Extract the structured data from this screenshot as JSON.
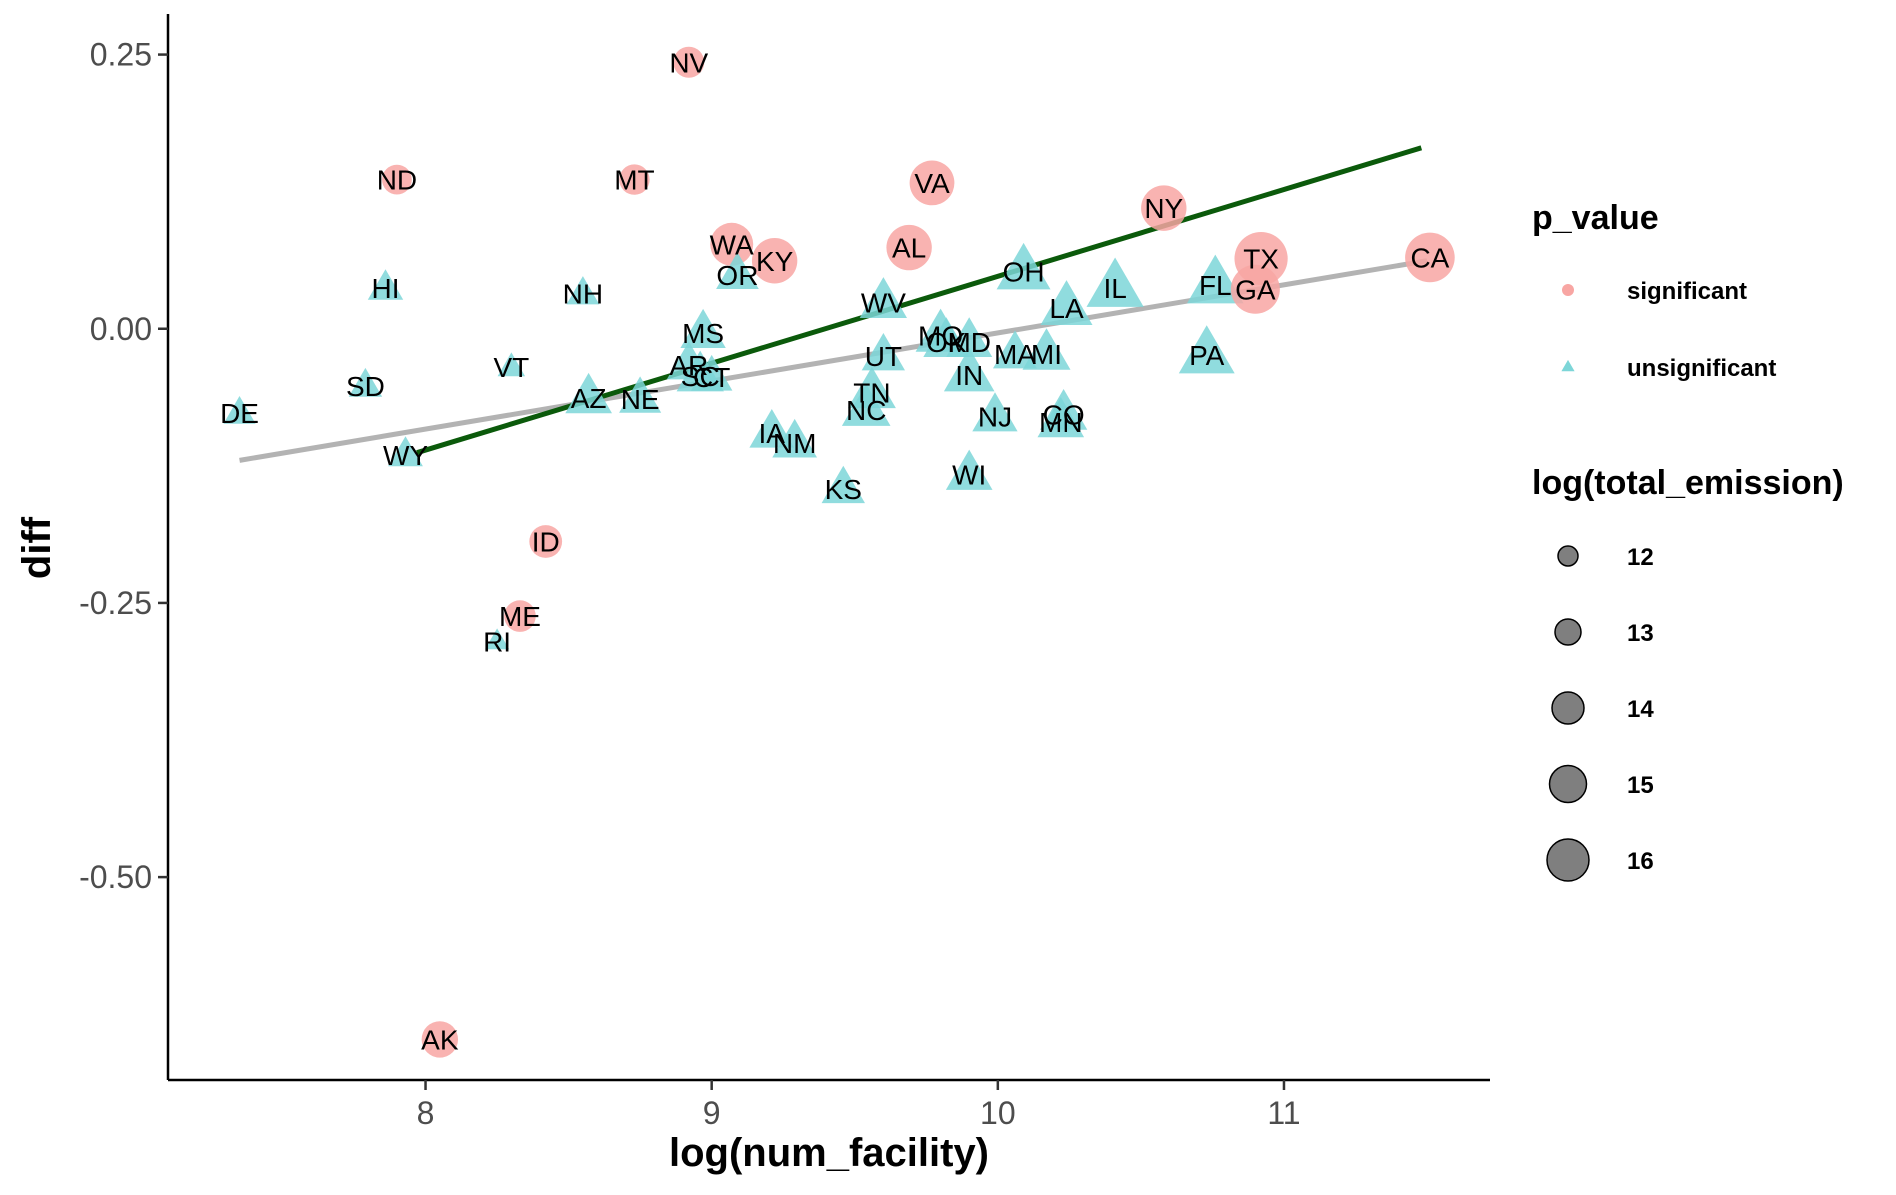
{
  "chart_data": {
    "type": "scatter",
    "title": "",
    "xlabel": "log(num_facility)",
    "ylabel": "diff",
    "xlim": [
      7.1,
      11.72
    ],
    "ylim": [
      -0.685,
      0.287
    ],
    "xticks": [
      8,
      9,
      10,
      11
    ],
    "xtick_labels": [
      "8",
      "9",
      "10",
      "11"
    ],
    "yticks": [
      0.25,
      0.0,
      -0.25,
      -0.5
    ],
    "ytick_labels": [
      "0.25",
      "0.00",
      "-0.25",
      "-0.50"
    ],
    "grid": false,
    "legend_position": "right",
    "colors": {
      "significant": "#F8A6A3",
      "unsignificant": "#7DD6D8",
      "fit_all": "#B3B3B3",
      "fit_unsignificant": "#0B5A0B",
      "axis": "#000000"
    },
    "legend": {
      "color_title": "p_value",
      "color_items": [
        {
          "label": "significant",
          "shape": "circle"
        },
        {
          "label": "unsignificant",
          "shape": "triangle"
        }
      ],
      "size_title": "log(total_emission)",
      "size_items": [
        {
          "label": "12",
          "value": 12
        },
        {
          "label": "13",
          "value": 13
        },
        {
          "label": "14",
          "value": 14
        },
        {
          "label": "15",
          "value": 15
        },
        {
          "label": "16",
          "value": 16
        }
      ]
    },
    "trend_lines": [
      {
        "name": "all",
        "color": "#B3B3B3",
        "x": [
          7.35,
          11.5
        ],
        "y": [
          -0.12,
          0.062
        ]
      },
      {
        "name": "unsignificant",
        "color": "#0B5A0B",
        "x": [
          7.97,
          11.48
        ],
        "y": [
          -0.113,
          0.165
        ]
      }
    ],
    "points": [
      {
        "label": "NV",
        "x": 8.92,
        "y": 0.243,
        "group": "significant",
        "size": 12.5
      },
      {
        "label": "ND",
        "x": 7.9,
        "y": 0.136,
        "group": "significant",
        "size": 12.3
      },
      {
        "label": "MT",
        "x": 8.73,
        "y": 0.136,
        "group": "significant",
        "size": 12.4
      },
      {
        "label": "VA",
        "x": 9.77,
        "y": 0.133,
        "group": "significant",
        "size": 14.8
      },
      {
        "label": "NY",
        "x": 10.58,
        "y": 0.11,
        "group": "significant",
        "size": 14.9
      },
      {
        "label": "WA",
        "x": 9.07,
        "y": 0.077,
        "group": "significant",
        "size": 14.5
      },
      {
        "label": "AL",
        "x": 9.69,
        "y": 0.074,
        "group": "significant",
        "size": 14.9
      },
      {
        "label": "KY",
        "x": 9.22,
        "y": 0.062,
        "group": "significant",
        "size": 14.9
      },
      {
        "label": "TX",
        "x": 10.92,
        "y": 0.064,
        "group": "significant",
        "size": 16.2
      },
      {
        "label": "CA",
        "x": 11.51,
        "y": 0.065,
        "group": "significant",
        "size": 15.6
      },
      {
        "label": "GA",
        "x": 10.9,
        "y": 0.036,
        "group": "significant",
        "size": 15.5
      },
      {
        "label": "ID",
        "x": 8.42,
        "y": -0.194,
        "group": "significant",
        "size": 12.8
      },
      {
        "label": "ME",
        "x": 8.33,
        "y": -0.262,
        "group": "significant",
        "size": 12.6
      },
      {
        "label": "AK",
        "x": 8.05,
        "y": -0.648,
        "group": "significant",
        "size": 13.4
      },
      {
        "label": "HI",
        "x": 7.86,
        "y": 0.037,
        "group": "unsignificant",
        "size": 12.7
      },
      {
        "label": "NH",
        "x": 8.55,
        "y": 0.032,
        "group": "unsignificant",
        "size": 12.3
      },
      {
        "label": "OR",
        "x": 9.09,
        "y": 0.049,
        "group": "unsignificant",
        "size": 13.8
      },
      {
        "label": "OH",
        "x": 10.09,
        "y": 0.052,
        "group": "unsignificant",
        "size": 15.5
      },
      {
        "label": "IL",
        "x": 10.41,
        "y": 0.037,
        "group": "unsignificant",
        "size": 16.0
      },
      {
        "label": "FL",
        "x": 10.76,
        "y": 0.04,
        "group": "unsignificant",
        "size": 15.9
      },
      {
        "label": "WV",
        "x": 9.6,
        "y": 0.024,
        "group": "unsignificant",
        "size": 14.5
      },
      {
        "label": "LA",
        "x": 10.24,
        "y": 0.019,
        "group": "unsignificant",
        "size": 15.2
      },
      {
        "label": "MO",
        "x": 9.8,
        "y": -0.006,
        "group": "unsignificant",
        "size": 14.9
      },
      {
        "label": "MS",
        "x": 8.97,
        "y": -0.004,
        "group": "unsignificant",
        "size": 14.2
      },
      {
        "label": "OK",
        "x": 9.82,
        "y": -0.012,
        "group": "unsignificant",
        "size": 14.3
      },
      {
        "label": "MD",
        "x": 9.9,
        "y": -0.012,
        "group": "unsignificant",
        "size": 14.3
      },
      {
        "label": "UT",
        "x": 9.6,
        "y": -0.025,
        "group": "unsignificant",
        "size": 13.9
      },
      {
        "label": "MA",
        "x": 10.06,
        "y": -0.023,
        "group": "unsignificant",
        "size": 14.0
      },
      {
        "label": "MI",
        "x": 10.17,
        "y": -0.023,
        "group": "unsignificant",
        "size": 14.6
      },
      {
        "label": "PA",
        "x": 10.73,
        "y": -0.024,
        "group": "unsignificant",
        "size": 15.8
      },
      {
        "label": "VT",
        "x": 8.3,
        "y": -0.035,
        "group": "unsignificant",
        "size": 11.5
      },
      {
        "label": "AR",
        "x": 8.92,
        "y": -0.033,
        "group": "unsignificant",
        "size": 14.0
      },
      {
        "label": "SC",
        "x": 8.96,
        "y": -0.043,
        "group": "unsignificant",
        "size": 14.5
      },
      {
        "label": "CT",
        "x": 9.0,
        "y": -0.044,
        "group": "unsignificant",
        "size": 13.6
      },
      {
        "label": "IN",
        "x": 9.9,
        "y": -0.042,
        "group": "unsignificant",
        "size": 15.0
      },
      {
        "label": "SD",
        "x": 7.79,
        "y": -0.052,
        "group": "unsignificant",
        "size": 12.4
      },
      {
        "label": "AZ",
        "x": 8.57,
        "y": -0.063,
        "group": "unsignificant",
        "size": 14.4
      },
      {
        "label": "NE",
        "x": 8.75,
        "y": -0.064,
        "group": "unsignificant",
        "size": 13.7
      },
      {
        "label": "TN",
        "x": 9.56,
        "y": -0.058,
        "group": "unsignificant",
        "size": 14.6
      },
      {
        "label": "NC",
        "x": 9.54,
        "y": -0.074,
        "group": "unsignificant",
        "size": 14.7
      },
      {
        "label": "DE",
        "x": 7.35,
        "y": -0.077,
        "group": "unsignificant",
        "size": 12.2
      },
      {
        "label": "NJ",
        "x": 9.99,
        "y": -0.08,
        "group": "unsignificant",
        "size": 14.2
      },
      {
        "label": "CO",
        "x": 10.23,
        "y": -0.078,
        "group": "unsignificant",
        "size": 14.5
      },
      {
        "label": "MN",
        "x": 10.22,
        "y": -0.085,
        "group": "unsignificant",
        "size": 14.4
      },
      {
        "label": "IA",
        "x": 9.21,
        "y": -0.095,
        "group": "unsignificant",
        "size": 14.1
      },
      {
        "label": "NM",
        "x": 9.29,
        "y": -0.104,
        "group": "unsignificant",
        "size": 14.1
      },
      {
        "label": "WY",
        "x": 7.93,
        "y": -0.115,
        "group": "unsignificant",
        "size": 12.6
      },
      {
        "label": "KS",
        "x": 9.46,
        "y": -0.146,
        "group": "unsignificant",
        "size": 13.9
      },
      {
        "label": "WI",
        "x": 9.9,
        "y": -0.133,
        "group": "unsignificant",
        "size": 14.4
      },
      {
        "label": "RI",
        "x": 8.25,
        "y": -0.285,
        "group": "unsignificant",
        "size": 11.0
      }
    ]
  }
}
